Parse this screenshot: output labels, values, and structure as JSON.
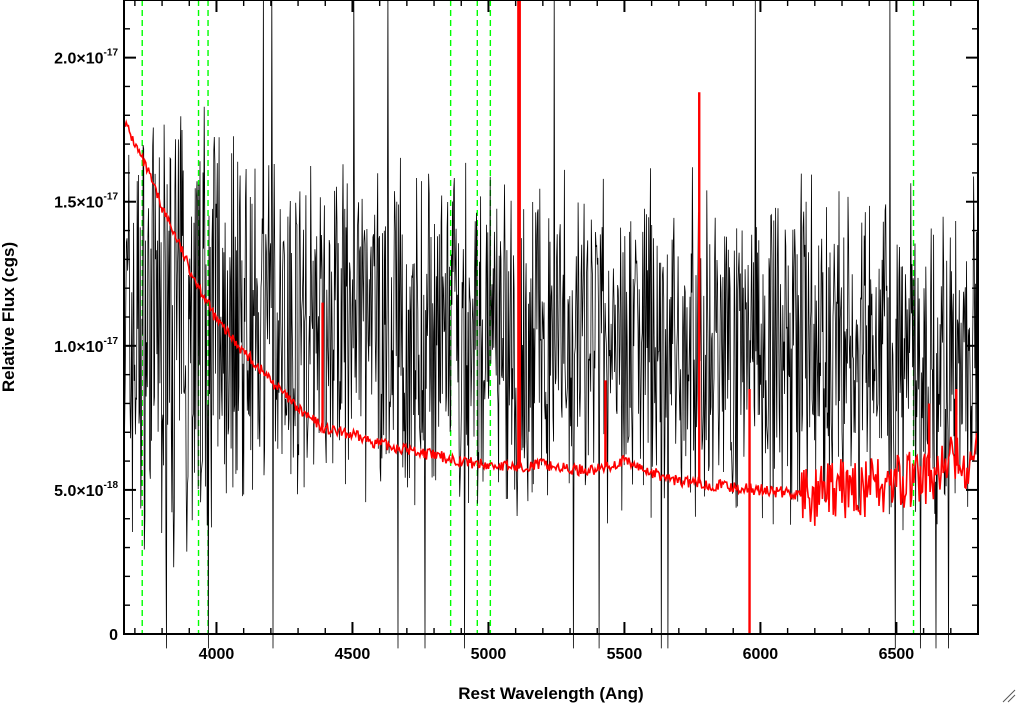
{
  "chart_data": {
    "type": "line",
    "title": "",
    "xlabel": "Rest Wavelength (Ang)",
    "ylabel": "Relative Flux (cgs)",
    "xlim": [
      3660,
      6800
    ],
    "ylim": [
      0,
      2.2e-17
    ],
    "x_ticks": [
      4000,
      4500,
      5000,
      5500,
      6000,
      6500
    ],
    "x_tick_labels": [
      "4000",
      "4500",
      "5000",
      "5500",
      "6000",
      "6500"
    ],
    "y_ticks": [
      0,
      5e-18,
      1e-17,
      1.5e-17,
      2e-17
    ],
    "y_tick_labels": [
      {
        "mantissa": "0",
        "exponent": ""
      },
      {
        "mantissa": "5.0×10",
        "exponent": "-18"
      },
      {
        "mantissa": "1.0×10",
        "exponent": "-17"
      },
      {
        "mantissa": "1.5×10",
        "exponent": "-17"
      },
      {
        "mantissa": "2.0×10",
        "exponent": "-17"
      }
    ],
    "grid": false,
    "series": [
      {
        "style": "observed-spectrum",
        "color": "#000000",
        "x_start": 3660,
        "x_end": 6800,
        "continuum_anchors": [
          {
            "x": 3660,
            "y": 1.02e-17
          },
          {
            "x": 4000,
            "y": 1.12e-17
          },
          {
            "x": 4500,
            "y": 1.05e-17
          },
          {
            "x": 5000,
            "y": 1e-17
          },
          {
            "x": 5500,
            "y": 1.02e-17
          },
          {
            "x": 6000,
            "y": 1e-17
          },
          {
            "x": 6500,
            "y": 9.5e-18
          },
          {
            "x": 6800,
            "y": 9.5e-18
          }
        ]
      },
      {
        "style": "model-continuum",
        "color": "#ff0000",
        "points": [
          [
            3660,
            1.78e-17
          ],
          [
            3700,
            1.7e-17
          ],
          [
            3750,
            1.6e-17
          ],
          [
            3800,
            1.48e-17
          ],
          [
            3850,
            1.38e-17
          ],
          [
            3900,
            1.27e-17
          ],
          [
            3950,
            1.18e-17
          ],
          [
            4000,
            1.09e-17
          ],
          [
            4100,
            9.8e-18
          ],
          [
            4200,
            8.8e-18
          ],
          [
            4300,
            7.8e-18
          ],
          [
            4400,
            7.1e-18
          ],
          [
            4500,
            6.9e-18
          ],
          [
            4600,
            6.6e-18
          ],
          [
            4700,
            6.4e-18
          ],
          [
            4800,
            6.2e-18
          ],
          [
            4900,
            6e-18
          ],
          [
            5000,
            5.85e-18
          ],
          [
            5100,
            5.8e-18
          ],
          [
            5200,
            5.9e-18
          ],
          [
            5300,
            5.7e-18
          ],
          [
            5400,
            5.7e-18
          ],
          [
            5500,
            6e-18
          ],
          [
            5600,
            5.6e-18
          ],
          [
            5700,
            5.3e-18
          ],
          [
            5800,
            5.2e-18
          ],
          [
            5900,
            5.1e-18
          ],
          [
            6000,
            5e-18
          ],
          [
            6100,
            4.9e-18
          ],
          [
            6200,
            4.7e-18
          ],
          [
            6300,
            5e-18
          ],
          [
            6400,
            5.1e-18
          ],
          [
            6500,
            5.2e-18
          ],
          [
            6600,
            5.4e-18
          ],
          [
            6700,
            5.8e-18
          ],
          [
            6800,
            6e-18
          ]
        ],
        "spikes": [
          {
            "x": 5110,
            "y": 2.2e-17
          },
          {
            "x": 5115,
            "y": 2.2e-17
          },
          {
            "x": 5960,
            "y": 0.0
          },
          {
            "x": 5960,
            "y": 8.5e-18
          },
          {
            "x": 5775,
            "y": 1.88e-17
          },
          {
            "x": 4390,
            "y": 1.15e-17
          },
          {
            "x": 5430,
            "y": 8.8e-18
          },
          {
            "x": 6620,
            "y": 8e-18
          },
          {
            "x": 6720,
            "y": 8.5e-18
          }
        ]
      }
    ],
    "reference_lines": {
      "color": "#00ff00",
      "style": "dashed",
      "x": [
        3727,
        3934,
        3969,
        4861,
        4959,
        5007,
        6563
      ]
    }
  }
}
